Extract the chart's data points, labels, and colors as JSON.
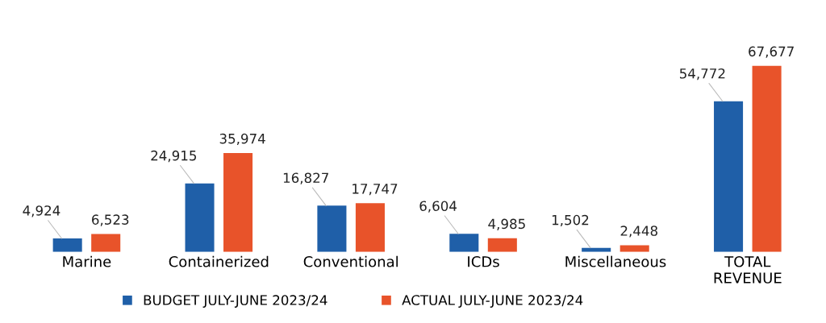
{
  "chart_data": {
    "type": "bar",
    "categories": [
      "Marine",
      "Containerized",
      "Conventional",
      "ICDs",
      "Miscellaneous",
      "TOTAL\nREVENUE"
    ],
    "series": [
      {
        "name": "BUDGET JULY-JUNE 2023/24",
        "color": "#1f5fa8",
        "values": [
          4924,
          24915,
          16827,
          6604,
          1502,
          54772
        ],
        "value_labels": [
          "4,924",
          "24,915",
          "16,827",
          "6,604",
          "1,502",
          "54,772"
        ]
      },
      {
        "name": "ACTUAL JULY-JUNE 2023/24",
        "color": "#e8532a",
        "values": [
          6523,
          35974,
          17747,
          4985,
          2448,
          67677
        ],
        "value_labels": [
          "6,523",
          "35,974",
          "17,747",
          "4,985",
          "2,448",
          "67,677"
        ]
      }
    ],
    "legend": "bottom",
    "grid": false
  }
}
